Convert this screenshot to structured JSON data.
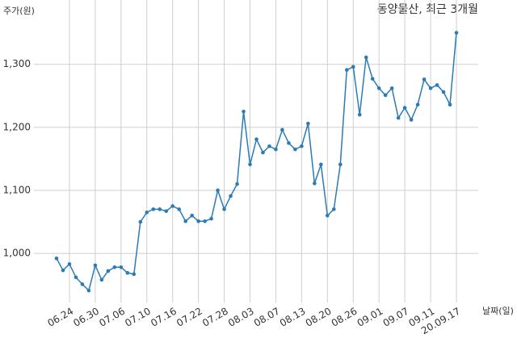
{
  "chart_data": {
    "type": "line",
    "title": "동양물산, 최근 3개월",
    "y_label": "주가(원)",
    "x_label": "날짜(일)",
    "categories": [
      null,
      null,
      "06.24",
      null,
      null,
      null,
      "06.30",
      null,
      null,
      null,
      "07.06",
      null,
      null,
      null,
      "07.10",
      null,
      null,
      null,
      "07.16",
      null,
      null,
      null,
      "07.22",
      null,
      null,
      null,
      "07.28",
      null,
      null,
      null,
      "08.03",
      null,
      null,
      null,
      "08.07",
      null,
      null,
      null,
      "08.13",
      null,
      null,
      null,
      "08.20",
      null,
      null,
      null,
      "08.26",
      null,
      null,
      null,
      "09.01",
      null,
      null,
      null,
      "09.07",
      null,
      null,
      null,
      "09.11",
      null,
      null,
      null,
      "20.09.17"
    ],
    "series": [
      {
        "name": "동양물산",
        "color": "#2b7bb5",
        "values": [
          992,
          973,
          983,
          962,
          951,
          941,
          981,
          958,
          972,
          978,
          978,
          969,
          967,
          1050,
          1065,
          1070,
          1070,
          1067,
          1075,
          1070,
          1051,
          1060,
          1051,
          1051,
          1055,
          1100,
          1070,
          1091,
          1110,
          1225,
          1141,
          1181,
          1160,
          1170,
          1165,
          1196,
          1175,
          1165,
          1170,
          1206,
          1111,
          1141,
          1060,
          1070,
          1141,
          1291,
          1296,
          1220,
          1311,
          1277,
          1262,
          1251,
          1262,
          1215,
          1231,
          1212,
          1236,
          1276,
          1262,
          1267,
          1256,
          1236,
          1350
        ]
      }
    ],
    "ylim": [
      922,
      1402
    ],
    "yticks": [
      {
        "value": 1000,
        "label": "1,000"
      },
      {
        "value": 1100,
        "label": "1,100"
      },
      {
        "value": 1200,
        "label": "1,200"
      },
      {
        "value": 1300,
        "label": "1,300"
      }
    ],
    "grid": true
  }
}
